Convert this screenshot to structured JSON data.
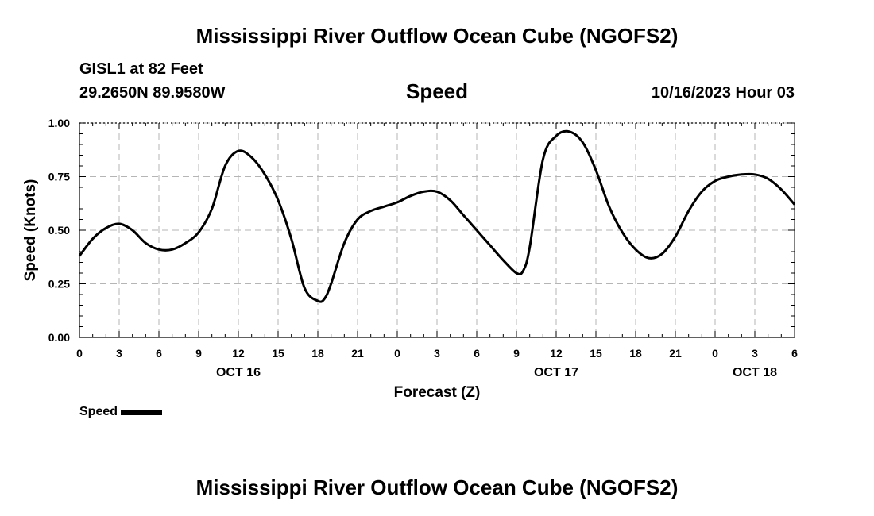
{
  "header": {
    "title": "Mississippi River Outflow Ocean Cube (NGOFS2)",
    "station": "GISL1 at 82 Feet",
    "coords": "29.2650N  89.9580W",
    "variable": "Speed",
    "timestamp": "10/16/2023 Hour 03"
  },
  "footer": {
    "title": "Mississippi River Outflow Ocean Cube (NGOFS2)"
  },
  "legend": {
    "label": "Speed",
    "color": "#000000"
  },
  "chart_data": {
    "type": "line",
    "title": "Speed",
    "xlabel": "Forecast (Z)",
    "ylabel": "Speed (Knots)",
    "xlim": [
      0,
      54
    ],
    "ylim": [
      0,
      1.0
    ],
    "grid": true,
    "legend_position": "bottom-left",
    "y_ticks": [
      "0.00",
      "0.25",
      "0.50",
      "0.75",
      "1.00"
    ],
    "x_ticks": [
      "0",
      "3",
      "6",
      "9",
      "12",
      "15",
      "18",
      "21",
      "0",
      "3",
      "6",
      "9",
      "12",
      "15",
      "18",
      "21",
      "0",
      "3",
      "6"
    ],
    "date_labels": [
      {
        "text": "OCT 16",
        "at_hour": 12
      },
      {
        "text": "OCT 17",
        "at_hour": 36
      },
      {
        "text": "OCT 18",
        "at_hour": 51
      }
    ],
    "series": [
      {
        "name": "Speed",
        "color": "#000000",
        "x": [
          0,
          1,
          2,
          3,
          4,
          5,
          6,
          7,
          8,
          9,
          10,
          11,
          12,
          13,
          14,
          15,
          16,
          17,
          18,
          18.5,
          19,
          20,
          21,
          22,
          23,
          24,
          25,
          26,
          27,
          28,
          29,
          30,
          31,
          32,
          33,
          33.5,
          34,
          35,
          36,
          37,
          38,
          39,
          40,
          41,
          42,
          43,
          44,
          45,
          46,
          47,
          48,
          49,
          50,
          51,
          52,
          53,
          54
        ],
        "values": [
          0.38,
          0.46,
          0.51,
          0.53,
          0.5,
          0.44,
          0.41,
          0.41,
          0.44,
          0.49,
          0.6,
          0.8,
          0.87,
          0.84,
          0.76,
          0.64,
          0.46,
          0.23,
          0.17,
          0.18,
          0.25,
          0.44,
          0.55,
          0.59,
          0.61,
          0.63,
          0.66,
          0.68,
          0.68,
          0.64,
          0.57,
          0.5,
          0.43,
          0.36,
          0.3,
          0.31,
          0.42,
          0.83,
          0.94,
          0.96,
          0.91,
          0.78,
          0.61,
          0.49,
          0.41,
          0.37,
          0.39,
          0.47,
          0.59,
          0.68,
          0.73,
          0.75,
          0.76,
          0.76,
          0.74,
          0.69,
          0.62
        ]
      }
    ]
  }
}
